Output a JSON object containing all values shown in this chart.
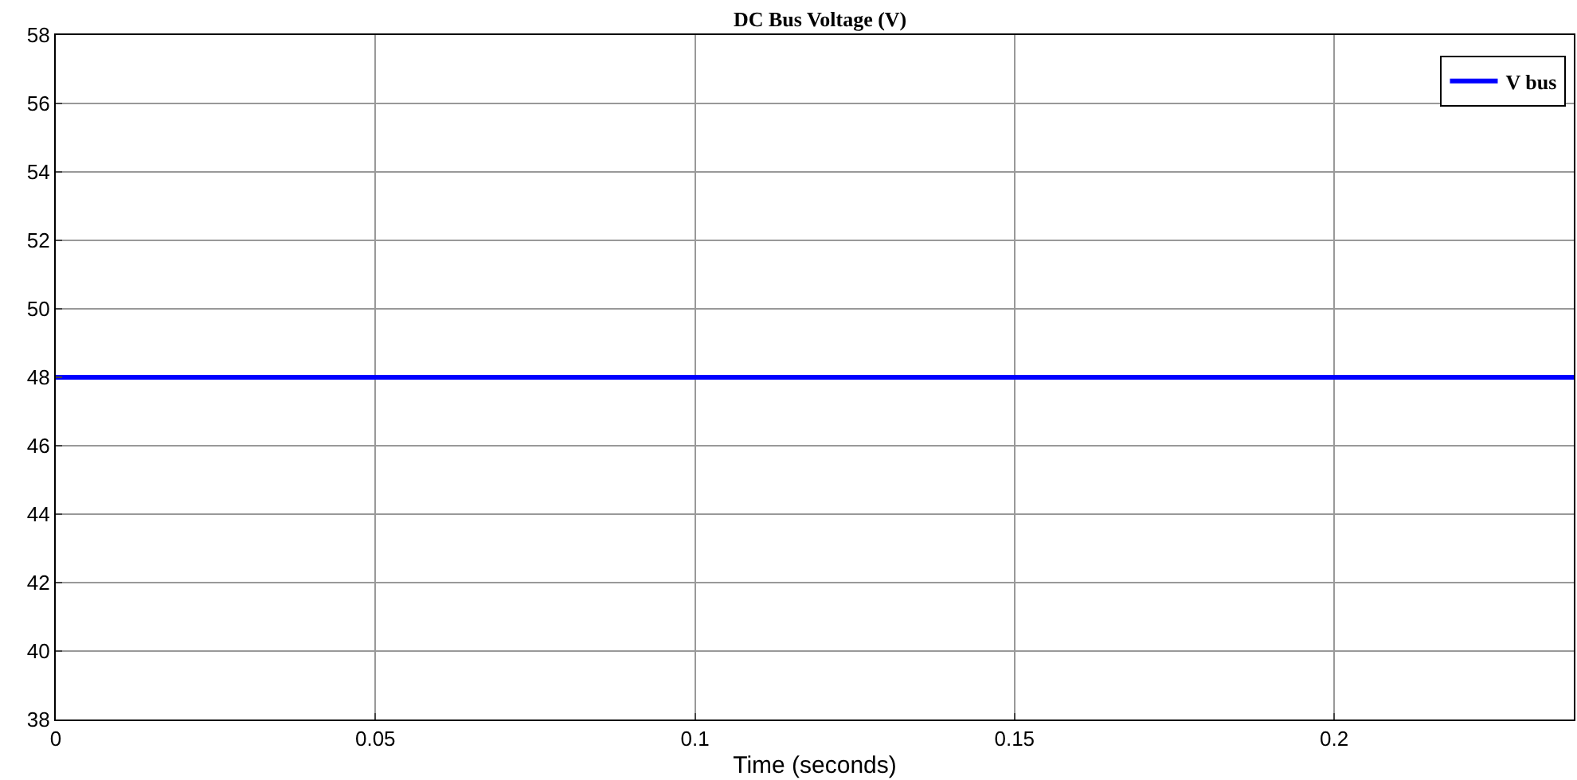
{
  "chart_data": {
    "type": "line",
    "title": "DC Bus Voltage (V)",
    "xlabel": "Time (seconds)",
    "x": [
      0,
      0.2375
    ],
    "series": [
      {
        "name": "V bus",
        "color": "#0000ff",
        "values": [
          48,
          48
        ]
      }
    ],
    "xlim": [
      0,
      0.2375
    ],
    "xticks": [
      0,
      0.05,
      0.1,
      0.15,
      0.2
    ],
    "ylim": [
      38,
      58
    ],
    "yticks": [
      38,
      40,
      42,
      44,
      46,
      48,
      50,
      52,
      54,
      56,
      58
    ],
    "grid": true,
    "legend": "top right",
    "marker": "none",
    "line_style": "solid"
  }
}
